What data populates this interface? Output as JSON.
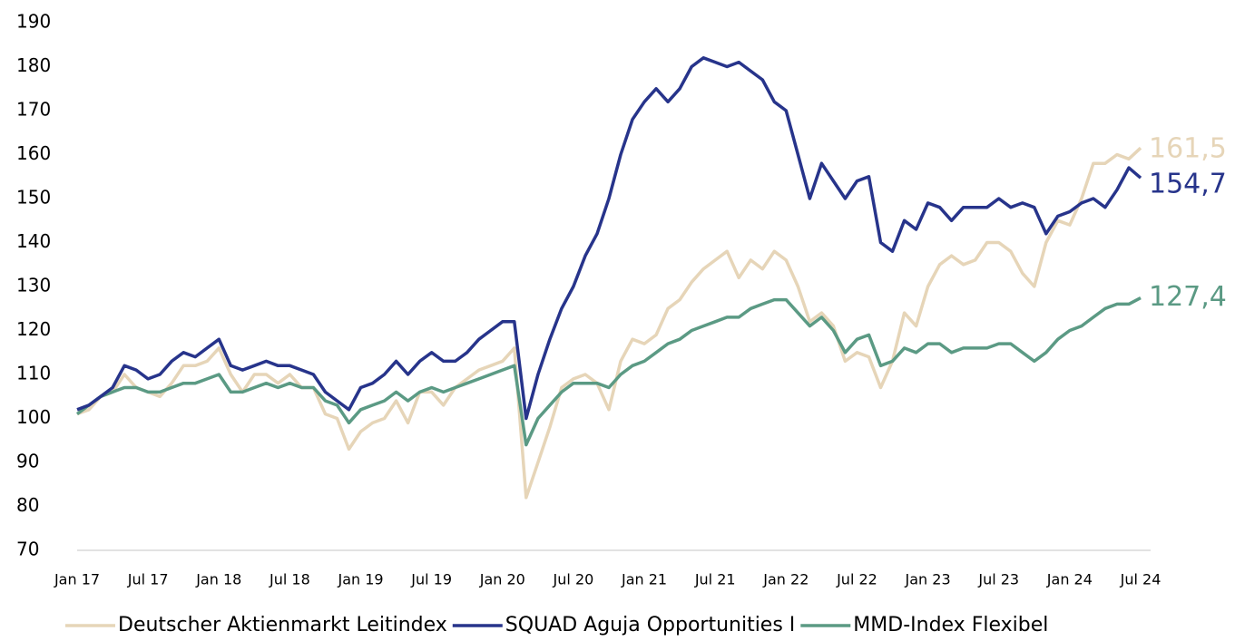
{
  "chart_data": {
    "type": "line",
    "x": [
      "Jan 17",
      "Feb 17",
      "Mar 17",
      "Apr 17",
      "May 17",
      "Jun 17",
      "Jul 17",
      "Aug 17",
      "Sep 17",
      "Oct 17",
      "Nov 17",
      "Dec 17",
      "Jan 18",
      "Feb 18",
      "Mar 18",
      "Apr 18",
      "May 18",
      "Jun 18",
      "Jul 18",
      "Aug 18",
      "Sep 18",
      "Oct 18",
      "Nov 18",
      "Dec 18",
      "Jan 19",
      "Feb 19",
      "Mar 19",
      "Apr 19",
      "May 19",
      "Jun 19",
      "Jul 19",
      "Aug 19",
      "Sep 19",
      "Oct 19",
      "Nov 19",
      "Dec 19",
      "Jan 20",
      "Feb 20",
      "Mar 20",
      "Apr 20",
      "May 20",
      "Jun 20",
      "Jul 20",
      "Aug 20",
      "Sep 20",
      "Oct 20",
      "Nov 20",
      "Dec 20",
      "Jan 21",
      "Feb 21",
      "Mar 21",
      "Apr 21",
      "May 21",
      "Jun 21",
      "Jul 21",
      "Aug 21",
      "Sep 21",
      "Oct 21",
      "Nov 21",
      "Dec 21",
      "Jan 22",
      "Feb 22",
      "Mar 22",
      "Apr 22",
      "May 22",
      "Jun 22",
      "Jul 22",
      "Aug 22",
      "Sep 22",
      "Oct 22",
      "Nov 22",
      "Dec 22",
      "Jan 23",
      "Feb 23",
      "Mar 23",
      "Apr 23",
      "May 23",
      "Jun 23",
      "Jul 23",
      "Aug 23",
      "Sep 23",
      "Oct 23",
      "Nov 23",
      "Dec 23",
      "Jan 24",
      "Feb 24",
      "Mar 24",
      "Apr 24",
      "May 24",
      "Jun 24",
      "Jul 24"
    ],
    "xticks": [
      "Jan 17",
      "Jul 17",
      "Jan 18",
      "Jul 18",
      "Jan 19",
      "Jul 19",
      "Jan 20",
      "Jul 20",
      "Jan 21",
      "Jul 21",
      "Jan 22",
      "Jul 22",
      "Jan 23",
      "Jul 23",
      "Jan 24",
      "Jul 24"
    ],
    "ylim": [
      70,
      190
    ],
    "yticks": [
      70,
      80,
      90,
      100,
      110,
      120,
      130,
      140,
      150,
      160,
      170,
      180,
      190
    ],
    "legend": "bottom",
    "series": [
      {
        "name": "Deutscher Aktienmarkt Leitindex",
        "color": "#e6d5b8",
        "end_label": "161,5",
        "values": [
          101,
          102,
          105,
          106,
          110,
          107,
          106,
          105,
          108,
          112,
          112,
          113,
          116,
          110,
          106,
          110,
          110,
          108,
          110,
          107,
          107,
          101,
          100,
          93,
          97,
          99,
          100,
          104,
          99,
          106,
          106,
          103,
          107,
          109,
          111,
          112,
          113,
          116,
          82,
          90,
          98,
          107,
          109,
          110,
          108,
          102,
          113,
          118,
          117,
          119,
          125,
          127,
          131,
          134,
          136,
          138,
          132,
          136,
          134,
          138,
          136,
          130,
          122,
          124,
          121,
          113,
          115,
          114,
          107,
          113,
          124,
          121,
          130,
          135,
          137,
          135,
          136,
          140,
          140,
          138,
          133,
          130,
          140,
          145,
          144,
          150,
          158,
          158,
          160,
          159,
          161.5
        ]
      },
      {
        "name": "SQUAD Aguja Opportunities I",
        "color": "#27348b",
        "end_label": "154,7",
        "values": [
          102,
          103,
          105,
          107,
          112,
          111,
          109,
          110,
          113,
          115,
          114,
          116,
          118,
          112,
          111,
          112,
          113,
          112,
          112,
          111,
          110,
          106,
          104,
          102,
          107,
          108,
          110,
          113,
          110,
          113,
          115,
          113,
          113,
          115,
          118,
          120,
          122,
          122,
          100,
          110,
          118,
          125,
          130,
          137,
          142,
          150,
          160,
          168,
          172,
          175,
          172,
          175,
          180,
          182,
          181,
          180,
          181,
          179,
          177,
          172,
          170,
          160,
          150,
          158,
          154,
          150,
          154,
          155,
          140,
          138,
          145,
          143,
          149,
          148,
          145,
          148,
          148,
          148,
          150,
          148,
          149,
          148,
          142,
          146,
          147,
          149,
          150,
          148,
          152,
          157,
          154.7
        ]
      },
      {
        "name": "MMD-Index Flexibel",
        "color": "#5b9a84",
        "end_label": "127,4",
        "values": [
          101,
          103,
          105,
          106,
          107,
          107,
          106,
          106,
          107,
          108,
          108,
          109,
          110,
          106,
          106,
          107,
          108,
          107,
          108,
          107,
          107,
          104,
          103,
          99,
          102,
          103,
          104,
          106,
          104,
          106,
          107,
          106,
          107,
          108,
          109,
          110,
          111,
          112,
          94,
          100,
          103,
          106,
          108,
          108,
          108,
          107,
          110,
          112,
          113,
          115,
          117,
          118,
          120,
          121,
          122,
          123,
          123,
          125,
          126,
          127,
          127,
          124,
          121,
          123,
          120,
          115,
          118,
          119,
          112,
          113,
          116,
          115,
          117,
          117,
          115,
          116,
          116,
          116,
          117,
          117,
          115,
          113,
          115,
          118,
          120,
          121,
          123,
          125,
          126,
          126,
          127.4
        ]
      }
    ]
  }
}
